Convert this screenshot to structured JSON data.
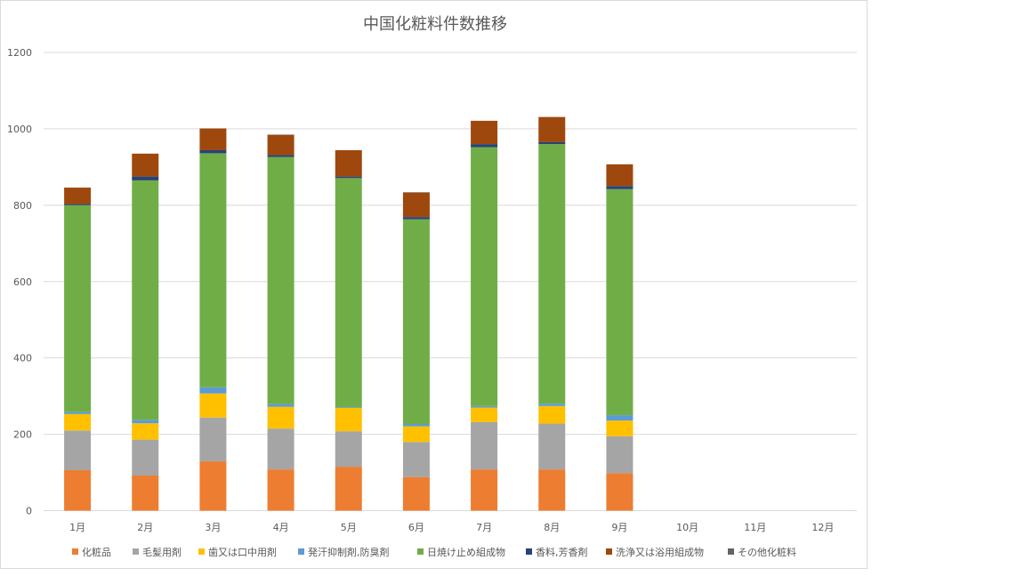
{
  "chart_data": {
    "type": "bar",
    "stacked": true,
    "title": "中国化粧料件数推移",
    "xlabel": "",
    "ylabel": "",
    "ylim": [
      0,
      1200
    ],
    "yticks": [
      0,
      200,
      400,
      600,
      800,
      1000,
      1200
    ],
    "grid": true,
    "legend_position": "bottom",
    "categories": [
      "1月",
      "2月",
      "3月",
      "4月",
      "5月",
      "6月",
      "7月",
      "8月",
      "9月",
      "10月",
      "11月",
      "12月"
    ],
    "series": [
      {
        "name": "化粧品",
        "color": "#ED7D31",
        "values": [
          106,
          92,
          129,
          108,
          115,
          88,
          108,
          108,
          98,
          0,
          0,
          0
        ]
      },
      {
        "name": "毛髪用剤",
        "color": "#A5A5A5",
        "values": [
          104,
          94,
          115,
          107,
          93,
          92,
          124,
          120,
          97,
          0,
          0,
          0
        ]
      },
      {
        "name": "歯又は口中用剤",
        "color": "#FFC000",
        "values": [
          43,
          43,
          63,
          57,
          61,
          41,
          38,
          46,
          41,
          0,
          0,
          0
        ]
      },
      {
        "name": "発汗抑制剤,防臭剤",
        "color": "#5B9BD5",
        "values": [
          5,
          9,
          16,
          7,
          2,
          6,
          4,
          6,
          14,
          0,
          0,
          0
        ]
      },
      {
        "name": "日焼け止め組成物",
        "color": "#70AD47",
        "values": [
          542,
          627,
          613,
          647,
          600,
          536,
          678,
          680,
          592,
          0,
          0,
          0
        ]
      },
      {
        "name": "香料,芳香剤",
        "color": "#264478",
        "values": [
          3,
          10,
          8,
          5,
          4,
          6,
          8,
          5,
          8,
          0,
          0,
          0
        ]
      },
      {
        "name": "洗浄又は浴用組成物",
        "color": "#9E480E",
        "values": [
          43,
          60,
          57,
          53,
          69,
          64,
          61,
          66,
          57,
          0,
          0,
          0
        ]
      },
      {
        "name": "その他化粧料",
        "color": "#636363",
        "values": [
          0,
          0,
          0,
          1,
          0,
          1,
          0,
          0,
          0,
          0,
          0,
          0
        ]
      }
    ]
  }
}
